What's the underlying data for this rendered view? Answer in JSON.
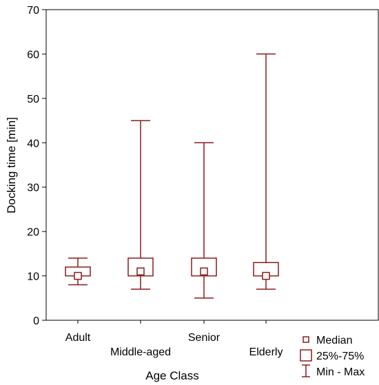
{
  "chart_data": {
    "type": "boxplot",
    "xlabel": "Age Class",
    "ylabel": "Docking time [min]",
    "ylim": [
      0,
      70
    ],
    "yticks": [
      0,
      10,
      20,
      30,
      40,
      50,
      60,
      70
    ],
    "grid": false,
    "legend_position": "bottom-right",
    "color": "#8b1a1a",
    "categories": [
      "Adult",
      "Middle-aged",
      "Senior",
      "Elderly"
    ],
    "series": [
      {
        "category": "Adult",
        "min": 8,
        "q1": 10,
        "median": 10,
        "q3": 12,
        "max": 14
      },
      {
        "category": "Middle-aged",
        "min": 7,
        "q1": 10,
        "median": 11,
        "q3": 14,
        "max": 45
      },
      {
        "category": "Senior",
        "min": 5,
        "q1": 10,
        "median": 11,
        "q3": 14,
        "max": 40
      },
      {
        "category": "Elderly",
        "min": 7,
        "q1": 10,
        "median": 10,
        "q3": 13,
        "max": 60
      }
    ],
    "legend": [
      {
        "symbol": "median",
        "label": "Median"
      },
      {
        "symbol": "box",
        "label": "25%-75%"
      },
      {
        "symbol": "whisker",
        "label": "Min - Max"
      }
    ]
  }
}
